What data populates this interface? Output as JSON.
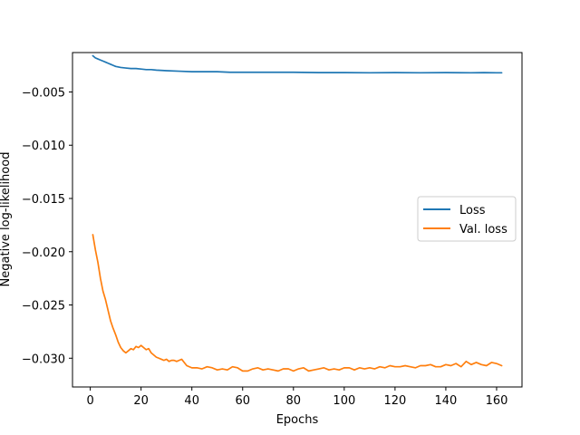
{
  "chart_data": {
    "type": "line",
    "title": "",
    "xlabel": "Epochs",
    "ylabel": "Negative log-likelihood",
    "xlim": [
      -7,
      170
    ],
    "ylim": [
      -0.0327,
      -0.0013
    ],
    "xticks": [
      0,
      20,
      40,
      60,
      80,
      100,
      120,
      140,
      160
    ],
    "xtick_labels": [
      "0",
      "20",
      "40",
      "60",
      "80",
      "100",
      "120",
      "140",
      "160"
    ],
    "yticks": [
      -0.005,
      -0.01,
      -0.015,
      -0.02,
      -0.025,
      -0.03
    ],
    "ytick_labels": [
      "−0.005",
      "−0.010",
      "−0.015",
      "−0.020",
      "−0.025",
      "−0.030"
    ],
    "grid": false,
    "legend_position": "center-right",
    "series": [
      {
        "name": "Loss",
        "color": "#1f77b4",
        "x": [
          1,
          2,
          3,
          4,
          5,
          6,
          7,
          8,
          9,
          10,
          12,
          14,
          16,
          18,
          20,
          22,
          24,
          26,
          30,
          35,
          40,
          45,
          50,
          55,
          60,
          70,
          80,
          90,
          100,
          110,
          120,
          130,
          140,
          150,
          155,
          160,
          162
        ],
        "y": [
          -0.0016,
          -0.0018,
          -0.0019,
          -0.002,
          -0.0021,
          -0.0022,
          -0.0023,
          -0.0024,
          -0.0025,
          -0.0026,
          -0.0027,
          -0.00275,
          -0.0028,
          -0.0028,
          -0.00285,
          -0.0029,
          -0.0029,
          -0.00295,
          -0.003,
          -0.00305,
          -0.0031,
          -0.0031,
          -0.0031,
          -0.00315,
          -0.00315,
          -0.00315,
          -0.00315,
          -0.00318,
          -0.00318,
          -0.0032,
          -0.00318,
          -0.0032,
          -0.00318,
          -0.0032,
          -0.00318,
          -0.0032,
          -0.0032
        ]
      },
      {
        "name": "Val. loss",
        "color": "#ff7f0e",
        "x": [
          1,
          2,
          3,
          4,
          5,
          6,
          7,
          8,
          9,
          10,
          11,
          12,
          13,
          14,
          15,
          16,
          17,
          18,
          19,
          20,
          21,
          22,
          23,
          24,
          25,
          26,
          27,
          28,
          29,
          30,
          31,
          32,
          33,
          34,
          35,
          36,
          37,
          38,
          40,
          42,
          44,
          46,
          48,
          50,
          52,
          54,
          56,
          58,
          60,
          62,
          64,
          66,
          68,
          70,
          72,
          74,
          76,
          78,
          80,
          82,
          84,
          86,
          88,
          90,
          92,
          94,
          96,
          98,
          100,
          102,
          104,
          106,
          108,
          110,
          112,
          114,
          116,
          118,
          120,
          122,
          124,
          126,
          128,
          130,
          132,
          134,
          136,
          138,
          140,
          142,
          144,
          146,
          148,
          150,
          152,
          154,
          156,
          158,
          160,
          162
        ],
        "y": [
          -0.0184,
          -0.0198,
          -0.021,
          -0.0225,
          -0.0237,
          -0.0245,
          -0.0255,
          -0.0265,
          -0.0272,
          -0.0278,
          -0.0285,
          -0.029,
          -0.0293,
          -0.0295,
          -0.0293,
          -0.0291,
          -0.0292,
          -0.0289,
          -0.029,
          -0.0288,
          -0.029,
          -0.0292,
          -0.0291,
          -0.0295,
          -0.0297,
          -0.0299,
          -0.03,
          -0.0301,
          -0.0302,
          -0.0301,
          -0.0303,
          -0.0302,
          -0.0302,
          -0.0303,
          -0.0302,
          -0.0301,
          -0.0304,
          -0.0307,
          -0.0309,
          -0.0309,
          -0.031,
          -0.0308,
          -0.0309,
          -0.0311,
          -0.031,
          -0.0311,
          -0.0308,
          -0.0309,
          -0.0312,
          -0.0312,
          -0.031,
          -0.0309,
          -0.0311,
          -0.031,
          -0.0311,
          -0.0312,
          -0.031,
          -0.031,
          -0.0312,
          -0.031,
          -0.0309,
          -0.0312,
          -0.0311,
          -0.031,
          -0.0309,
          -0.0311,
          -0.031,
          -0.0311,
          -0.0309,
          -0.0309,
          -0.0311,
          -0.0309,
          -0.031,
          -0.0309,
          -0.031,
          -0.0308,
          -0.0309,
          -0.0307,
          -0.0308,
          -0.0308,
          -0.0307,
          -0.0308,
          -0.0309,
          -0.0307,
          -0.0307,
          -0.0306,
          -0.0308,
          -0.0308,
          -0.0306,
          -0.0307,
          -0.0305,
          -0.0308,
          -0.0303,
          -0.0306,
          -0.0304,
          -0.0306,
          -0.0307,
          -0.0304,
          -0.0305,
          -0.0307
        ]
      }
    ]
  }
}
